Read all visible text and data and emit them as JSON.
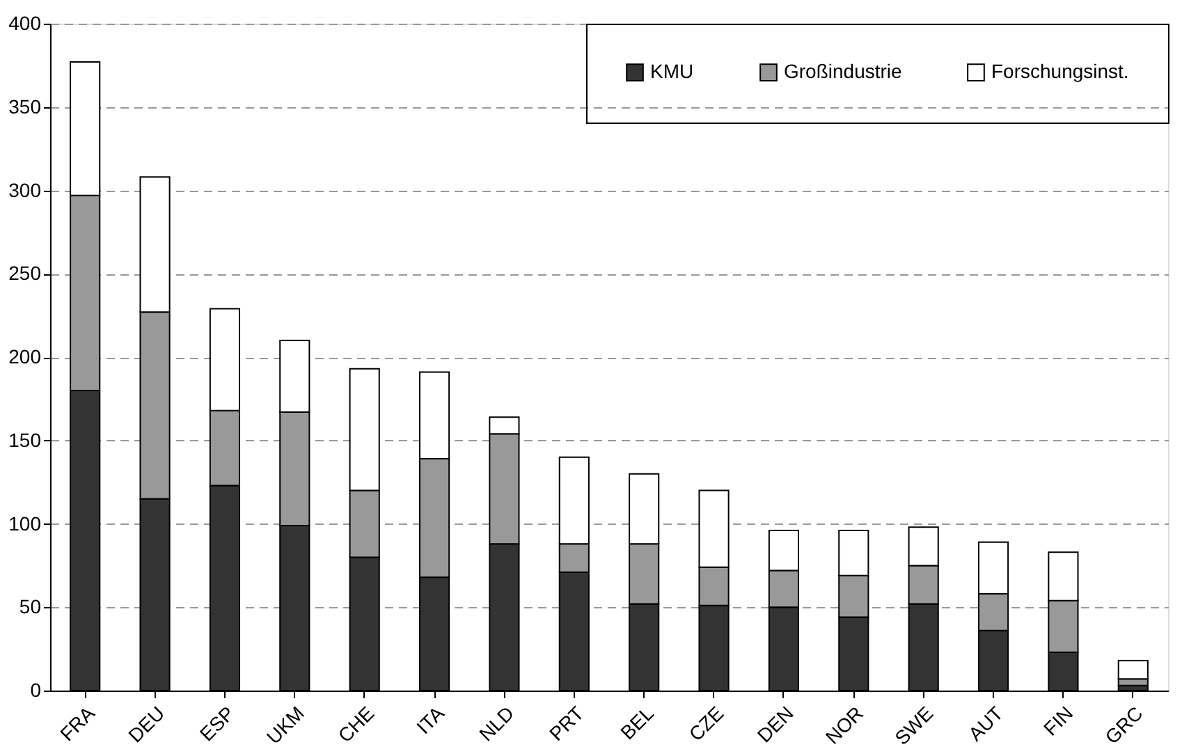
{
  "chart_data": {
    "type": "bar",
    "stacked": true,
    "categories": [
      "FRA",
      "DEU",
      "ESP",
      "UKM",
      "CHE",
      "ITA",
      "NLD",
      "PRT",
      "BEL",
      "CZE",
      "DEN",
      "NOR",
      "SWE",
      "AUT",
      "FIN",
      "GRC"
    ],
    "series": [
      {
        "name": "KMU",
        "color": "#333333",
        "values": [
          180,
          115,
          123,
          99,
          80,
          68,
          88,
          71,
          52,
          51,
          50,
          44,
          52,
          36,
          23,
          3
        ]
      },
      {
        "name": "Großindustrie",
        "color": "#999999",
        "values": [
          117,
          112,
          45,
          68,
          40,
          71,
          66,
          17,
          36,
          23,
          22,
          25,
          23,
          22,
          31,
          4
        ]
      },
      {
        "name": "Forschungsinst.",
        "color": "#ffffff",
        "values": [
          80,
          81,
          61,
          43,
          73,
          52,
          10,
          52,
          42,
          46,
          24,
          27,
          23,
          31,
          29,
          11
        ]
      }
    ],
    "ylim": [
      0,
      400
    ],
    "yticks": [
      0,
      50,
      100,
      150,
      200,
      250,
      300,
      350,
      400
    ],
    "grid": "y",
    "legend": "top right"
  }
}
